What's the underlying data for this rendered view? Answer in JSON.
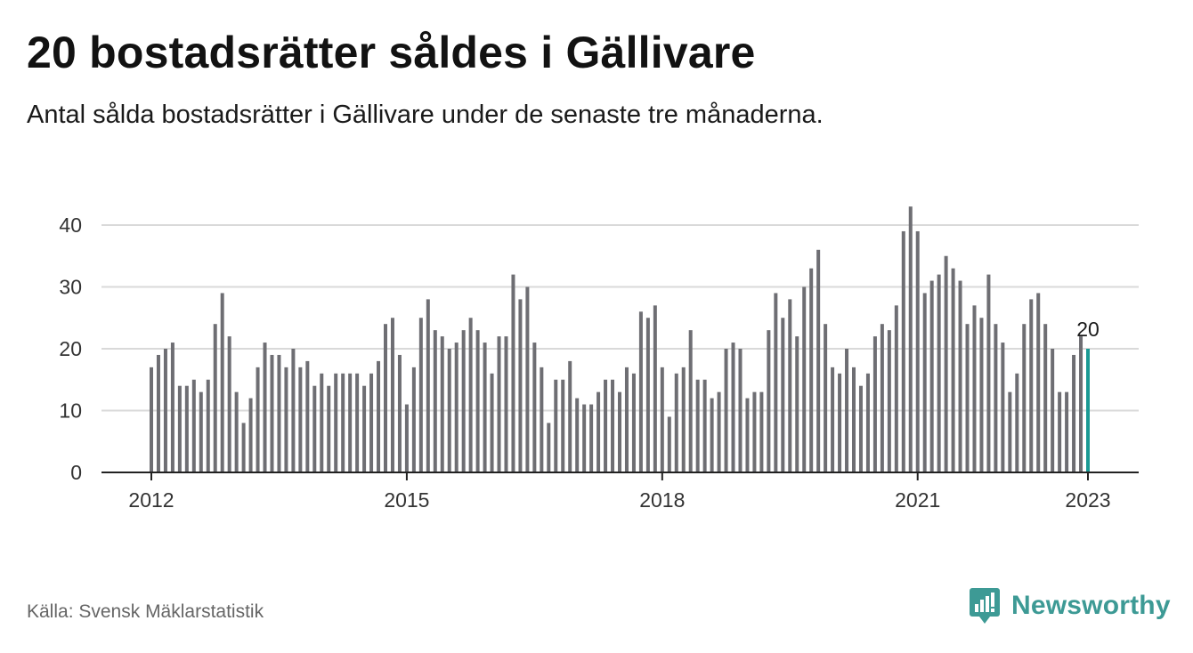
{
  "title": "20 bostadsrätter såldes i Gällivare",
  "subtitle": "Antal sålda bostadsrätter i Gällivare under de senaste tre månaderna.",
  "source": "Källa: Svensk Mäklarstatistik",
  "brand": {
    "name": "Newsworthy",
    "icon": "newsworthy-logo-icon"
  },
  "colors": {
    "bar": "#6e6e73",
    "highlight": "#1a9a94",
    "grid": "#d9d9d9",
    "axis": "#222222",
    "brand": "#3d9a95"
  },
  "chart_data": {
    "type": "bar",
    "title": "20 bostadsrätter såldes i Gällivare",
    "xlabel": "",
    "ylabel": "",
    "ylim": [
      0,
      45
    ],
    "yticks": [
      0,
      10,
      20,
      30,
      40
    ],
    "x_tick_labels": [
      {
        "label": "2012",
        "index": 0
      },
      {
        "label": "2015",
        "index": 36
      },
      {
        "label": "2018",
        "index": 72
      },
      {
        "label": "2021",
        "index": 108
      },
      {
        "label": "2023",
        "index": 132
      }
    ],
    "highlight_label": "20",
    "start": "2012-01",
    "end": "2023-01",
    "values": [
      17,
      19,
      20,
      21,
      14,
      14,
      15,
      13,
      15,
      24,
      29,
      22,
      13,
      8,
      12,
      17,
      21,
      19,
      19,
      17,
      20,
      17,
      18,
      14,
      16,
      14,
      16,
      16,
      16,
      16,
      14,
      16,
      18,
      24,
      25,
      19,
      11,
      17,
      25,
      28,
      23,
      22,
      20,
      21,
      23,
      25,
      23,
      21,
      16,
      22,
      22,
      32,
      28,
      30,
      21,
      17,
      8,
      15,
      15,
      18,
      12,
      11,
      11,
      13,
      15,
      15,
      13,
      17,
      16,
      26,
      25,
      27,
      17,
      9,
      16,
      17,
      23,
      15,
      15,
      12,
      13,
      20,
      21,
      20,
      12,
      13,
      13,
      23,
      29,
      25,
      28,
      22,
      30,
      33,
      36,
      24,
      17,
      16,
      20,
      17,
      14,
      16,
      22,
      24,
      23,
      27,
      39,
      43,
      39,
      29,
      31,
      32,
      35,
      33,
      31,
      24,
      27,
      25,
      32,
      24,
      21,
      13,
      16,
      24,
      28,
      29,
      24,
      20,
      13,
      13,
      19,
      22,
      20
    ]
  }
}
